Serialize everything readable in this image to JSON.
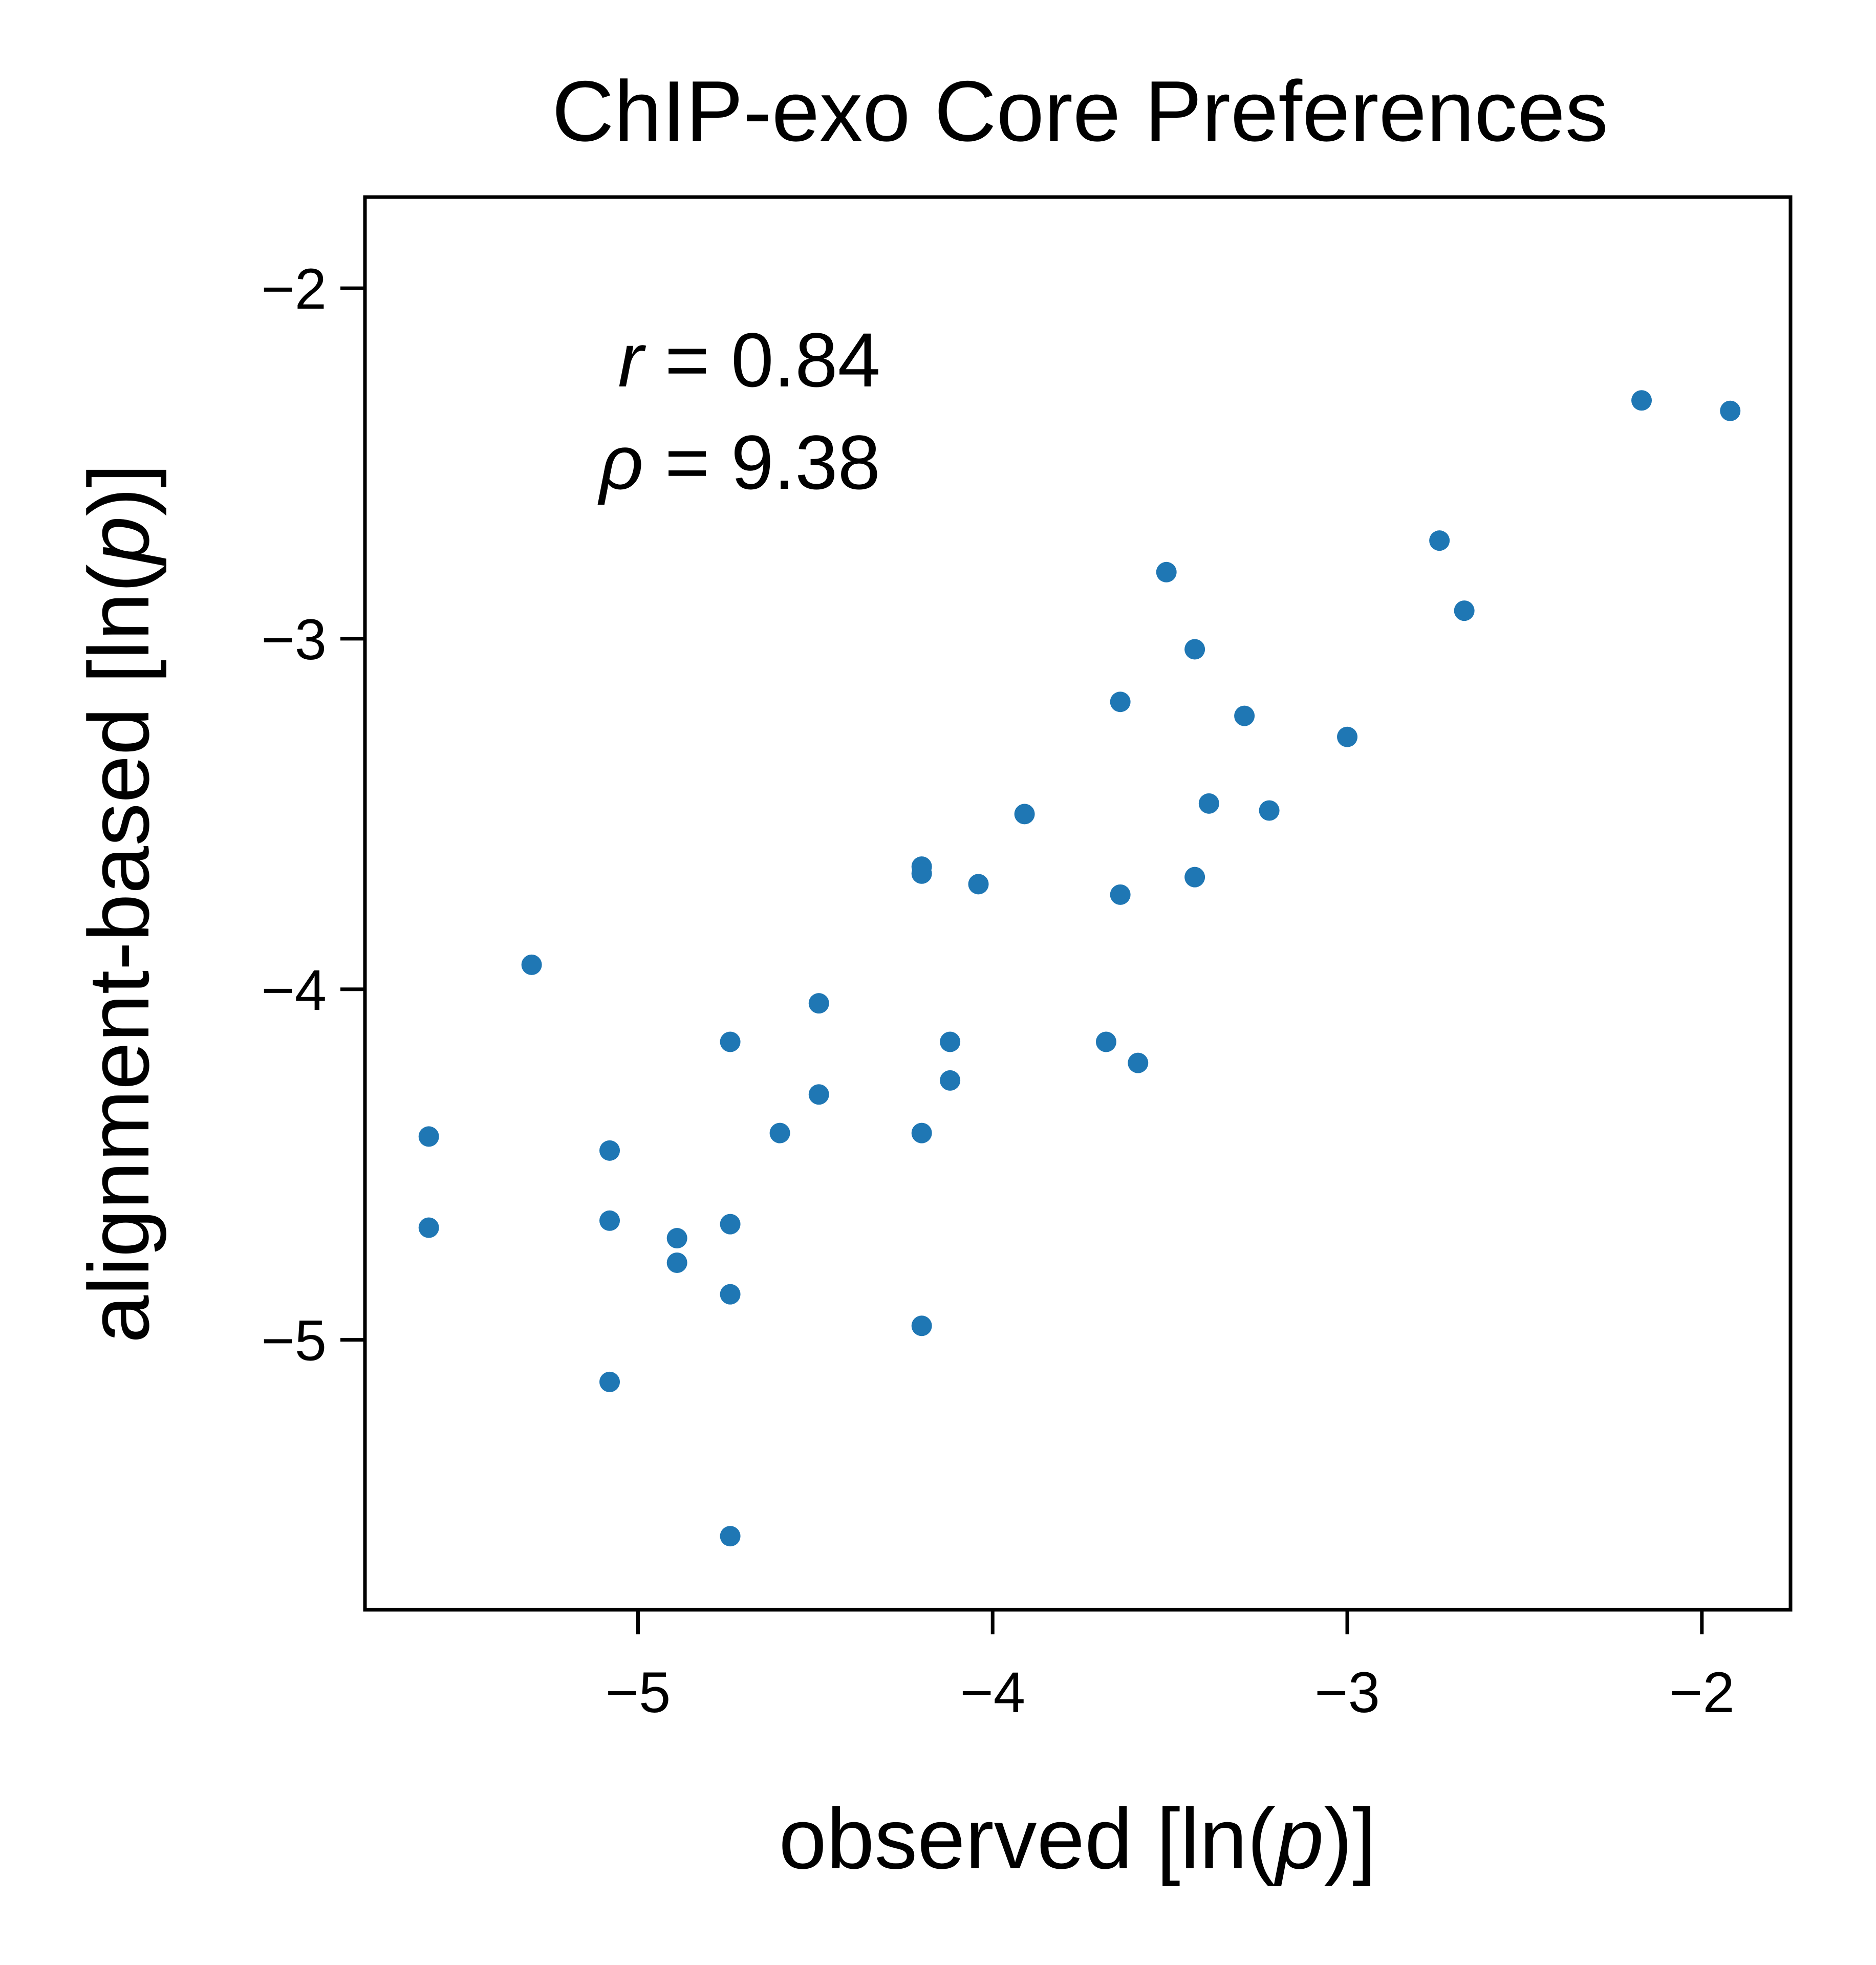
{
  "chart_data": {
    "type": "scatter",
    "title": "ChIP-exo Core Preferences",
    "xlabel": {
      "pre": "observed [ln(",
      "var": "p",
      "post": ")]"
    },
    "ylabel": {
      "pre": "alignment-based [ln(",
      "var": "p",
      "post": ")]"
    },
    "xlim": [
      -5.77,
      -1.75
    ],
    "ylim": [
      -5.77,
      -1.74
    ],
    "xticks": [
      -5,
      -4,
      -3,
      -2
    ],
    "yticks": [
      -5,
      -4,
      -3,
      -2
    ],
    "tick_labels_x": [
      "−5",
      "−4",
      "−3",
      "−2"
    ],
    "tick_labels_y": [
      "−5",
      "−4",
      "−3",
      "−2"
    ],
    "grid": false,
    "color": "#1f77b4",
    "annotations": {
      "r": {
        "symbol": "r",
        "text": " = 0.84"
      },
      "rho": {
        "symbol": "ρ",
        "text": " = 9.38"
      }
    },
    "points": [
      {
        "x": -5.59,
        "y": -4.42
      },
      {
        "x": -5.59,
        "y": -4.68
      },
      {
        "x": -5.3,
        "y": -3.93
      },
      {
        "x": -5.08,
        "y": -4.46
      },
      {
        "x": -5.08,
        "y": -4.66
      },
      {
        "x": -5.08,
        "y": -5.12
      },
      {
        "x": -4.89,
        "y": -4.71
      },
      {
        "x": -4.89,
        "y": -4.78
      },
      {
        "x": -4.74,
        "y": -4.15
      },
      {
        "x": -4.74,
        "y": -4.67
      },
      {
        "x": -4.74,
        "y": -4.87
      },
      {
        "x": -4.74,
        "y": -5.56
      },
      {
        "x": -4.6,
        "y": -4.41
      },
      {
        "x": -4.49,
        "y": -4.04
      },
      {
        "x": -4.49,
        "y": -4.3
      },
      {
        "x": -4.2,
        "y": -3.65
      },
      {
        "x": -4.2,
        "y": -3.67
      },
      {
        "x": -4.2,
        "y": -4.41
      },
      {
        "x": -4.2,
        "y": -4.96
      },
      {
        "x": -4.12,
        "y": -4.15
      },
      {
        "x": -4.12,
        "y": -4.26
      },
      {
        "x": -4.04,
        "y": -3.7
      },
      {
        "x": -3.91,
        "y": -3.5
      },
      {
        "x": -3.68,
        "y": -4.15
      },
      {
        "x": -3.64,
        "y": -3.18
      },
      {
        "x": -3.64,
        "y": -3.73
      },
      {
        "x": -3.59,
        "y": -4.21
      },
      {
        "x": -3.51,
        "y": -2.81
      },
      {
        "x": -3.43,
        "y": -3.03
      },
      {
        "x": -3.43,
        "y": -3.68
      },
      {
        "x": -3.39,
        "y": -3.47
      },
      {
        "x": -3.29,
        "y": -3.22
      },
      {
        "x": -3.22,
        "y": -3.49
      },
      {
        "x": -3.0,
        "y": -3.28
      },
      {
        "x": -2.74,
        "y": -2.72
      },
      {
        "x": -2.67,
        "y": -2.92
      },
      {
        "x": -2.17,
        "y": -2.32
      },
      {
        "x": -1.92,
        "y": -2.35
      }
    ]
  }
}
